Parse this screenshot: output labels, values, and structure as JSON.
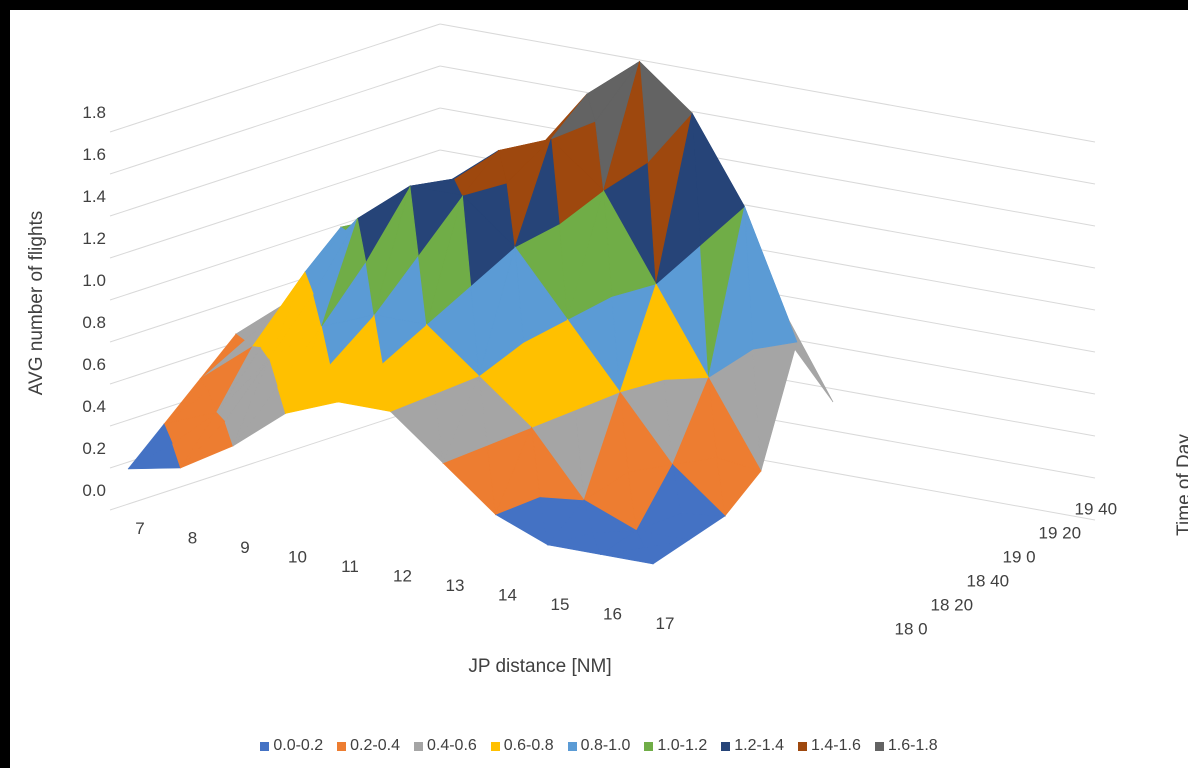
{
  "chart_data": {
    "type": "surface",
    "title": "",
    "xlabel": "JP distance [NM]",
    "ylabel": "Time of Day",
    "zlabel": "AVG number of flights",
    "x": [
      7,
      8,
      9,
      10,
      11,
      12,
      13,
      14,
      15,
      16,
      17
    ],
    "x_tick_labels": [
      "7",
      "8",
      "9",
      "10",
      "11",
      "12",
      "13",
      "14",
      "15",
      "16",
      "17"
    ],
    "y": [
      "18 0",
      "18 20",
      "18 40",
      "19 0",
      "19 20",
      "19 40"
    ],
    "z_ticks": [
      "0.0",
      "0.2",
      "0.4",
      "0.6",
      "0.8",
      "1.0",
      "1.2",
      "1.4",
      "1.6",
      "1.8"
    ],
    "zlim": [
      0,
      1.8
    ],
    "legend_position": "bottom",
    "bands": [
      {
        "label": "0.0-0.2",
        "color": "#4472C4"
      },
      {
        "label": "0.2-0.4",
        "color": "#ED7D31"
      },
      {
        "label": "0.4-0.6",
        "color": "#A5A5A5"
      },
      {
        "label": "0.6-0.8",
        "color": "#FFC000"
      },
      {
        "label": "0.8-1.0",
        "color": "#5B9BD5"
      },
      {
        "label": "1.0-1.2",
        "color": "#70AD47"
      },
      {
        "label": "1.2-1.4",
        "color": "#264478"
      },
      {
        "label": "1.4-1.6",
        "color": "#9E480E"
      },
      {
        "label": "1.6-1.8",
        "color": "#636363"
      }
    ],
    "z": [
      [
        0.1,
        0.15,
        0.3,
        0.5,
        0.6,
        0.6,
        0.4,
        0.2,
        0.1,
        0.1,
        0.1
      ],
      [
        0.2,
        0.3,
        0.6,
        0.8,
        0.9,
        0.9,
        0.7,
        0.5,
        0.2,
        0.1,
        0.1
      ],
      [
        0.3,
        0.5,
        0.9,
        1.2,
        1.4,
        1.4,
        1.2,
        0.9,
        0.6,
        0.3,
        0.1
      ],
      [
        0.4,
        0.6,
        1.0,
        1.1,
        1.3,
        1.5,
        1.6,
        1.4,
        1.0,
        0.6,
        0.2
      ],
      [
        0.2,
        0.3,
        0.5,
        0.7,
        0.9,
        1.2,
        1.7,
        1.9,
        1.7,
        1.3,
        0.7
      ],
      [
        0.1,
        0.2,
        0.3,
        0.4,
        0.5,
        0.8,
        1.0,
        1.1,
        0.9,
        0.6,
        0.3
      ]
    ]
  }
}
